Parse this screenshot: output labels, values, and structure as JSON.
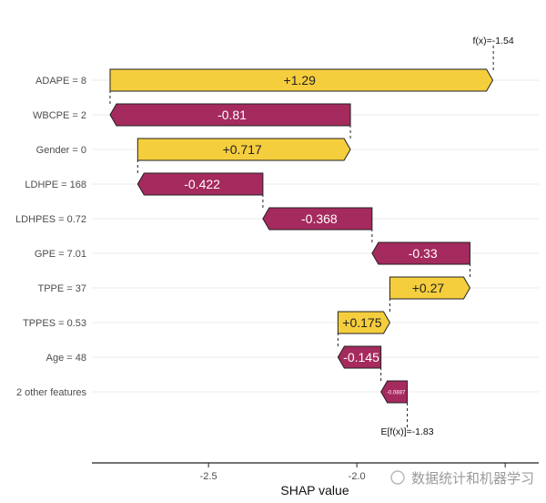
{
  "chart_data": {
    "type": "bar",
    "subtype": "waterfall",
    "xlabel": "SHAP value",
    "xlim": [
      -2.893,
      -1.387
    ],
    "xticks": [
      -2.5,
      -2.0,
      -1.5
    ],
    "xtick_labels": [
      "-2.5",
      "-2.0",
      ""
    ],
    "base_value": -1.83,
    "base_label": "E[f(x)]=-1.83",
    "output_value": -1.54,
    "output_label": "f(x)=-1.54",
    "features": [
      {
        "name": "ADAPE = 8",
        "value": 1.29,
        "label": "+1.29"
      },
      {
        "name": "WBCPE = 2",
        "value": -0.81,
        "label": "-0.81"
      },
      {
        "name": "Gender = 0",
        "value": 0.717,
        "label": "+0.717"
      },
      {
        "name": "LDHPE = 168",
        "value": -0.422,
        "label": "-0.422"
      },
      {
        "name": "LDHPES = 0.72",
        "value": -0.368,
        "label": "-0.368"
      },
      {
        "name": "GPE = 7.01",
        "value": -0.33,
        "label": "-0.33"
      },
      {
        "name": "TPPE = 37",
        "value": 0.27,
        "label": "+0.27"
      },
      {
        "name": "TPPES = 0.53",
        "value": 0.175,
        "label": "+0.175"
      },
      {
        "name": "Age = 48",
        "value": -0.145,
        "label": "-0.145"
      },
      {
        "name": "2 other features",
        "value": -0.0887,
        "label": "-0.0887"
      }
    ],
    "colors": {
      "positive": "#F5CE3E",
      "negative": "#A52A5D"
    }
  },
  "watermark": "数据统计和机器学习"
}
